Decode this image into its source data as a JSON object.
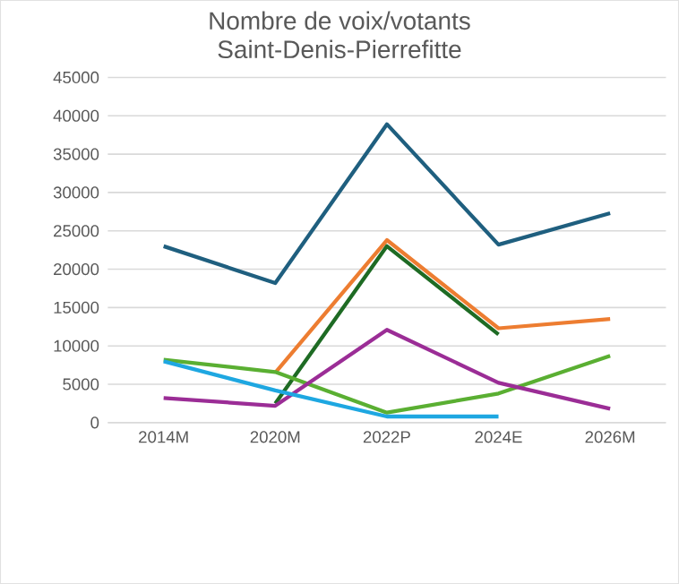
{
  "chart_data": {
    "type": "line",
    "title": "Nombre de voix/votants",
    "subtitle": "Saint-Denis-Pierrefitte",
    "categories": [
      "2014M",
      "2020M",
      "2022P",
      "2024E",
      "2026M"
    ],
    "series": [
      {
        "color": "#1f5f7f",
        "values": [
          23000,
          18200,
          38900,
          23200,
          27300
        ]
      },
      {
        "color": "#ed7d31",
        "values": [
          null,
          6500,
          23800,
          12300,
          13500
        ]
      },
      {
        "color": "#1e6b24",
        "values": [
          null,
          2500,
          23000,
          11500,
          null
        ]
      },
      {
        "color": "#5aaf32",
        "values": [
          8200,
          6600,
          1300,
          3800,
          8700
        ]
      },
      {
        "color": "#9b2d96",
        "values": [
          3200,
          2200,
          12100,
          5200,
          1800
        ]
      },
      {
        "color": "#1ea7e1",
        "values": [
          8000,
          4200,
          800,
          800,
          null
        ]
      }
    ],
    "ylim": [
      0,
      45000
    ],
    "yticks": [
      0,
      5000,
      10000,
      15000,
      20000,
      25000,
      30000,
      35000,
      40000,
      45000
    ],
    "grid": "y",
    "legend": false,
    "marker": "none",
    "line_style": "solid"
  }
}
